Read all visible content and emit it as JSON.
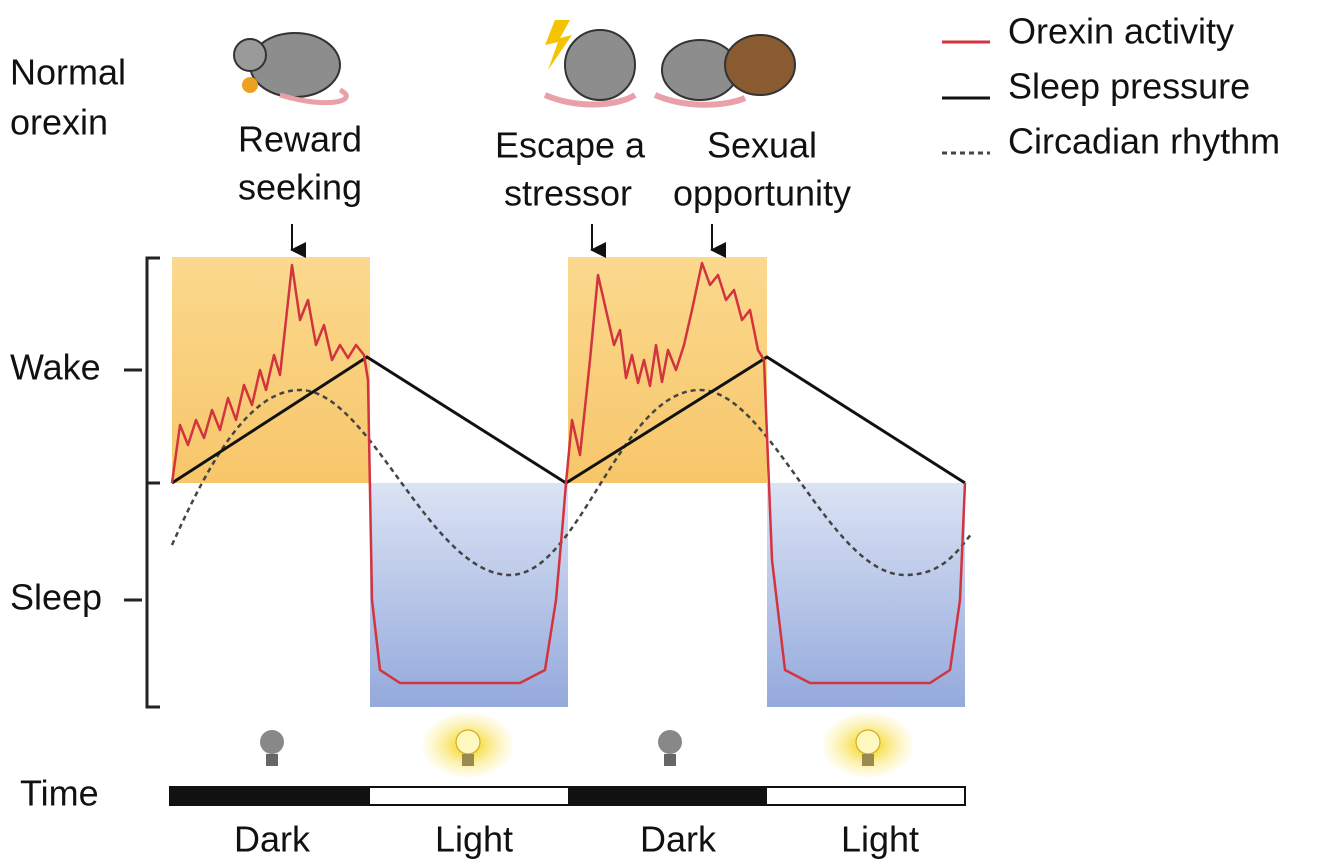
{
  "panel_label": [
    "Normal",
    "orexin"
  ],
  "annotations": [
    {
      "lines": [
        "Reward",
        "seeking"
      ]
    },
    {
      "lines": [
        "Escape a",
        "stressor"
      ]
    },
    {
      "lines": [
        "Sexual",
        "opportunity"
      ]
    }
  ],
  "legend": [
    {
      "label": "Orexin activity"
    },
    {
      "label": "Sleep pressure"
    },
    {
      "label": "Circadian rhythm"
    }
  ],
  "states": [
    "Wake",
    "Sleep"
  ],
  "time_label": "Time",
  "phases": [
    "Dark",
    "Light",
    "Dark",
    "Light"
  ]
}
